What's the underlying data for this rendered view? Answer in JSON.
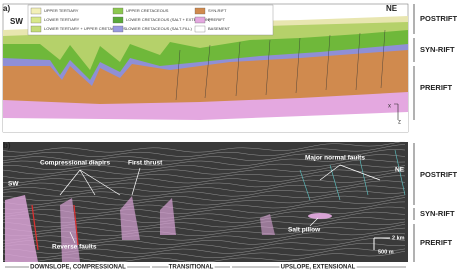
{
  "panel_a": {
    "label": "a)",
    "left": "SW",
    "right": "NE",
    "axis_x": "x",
    "axis_z": "z",
    "legend": [
      "UPPER TERTIARY",
      "LOWER TERTIARY",
      "LOWER TERTIARY + UPPER CRETACEOUS",
      "UPPER CRETACEOUS",
      "LOWER CRETACEOUS (SALT + EXTENSION)",
      "LOWER CRETACEOUS (SALT-FILL)",
      "SYN-RIFT",
      "PRERIFT",
      "BASEMENT"
    ]
  },
  "panel_b": {
    "label": "b)",
    "left": "SW",
    "right": "NE",
    "annotations": [
      "Compressional diapirs",
      "First thrust",
      "Major normal faults",
      "Reverse faults",
      "Salt pillow"
    ],
    "scale_h": "2 km",
    "scale_v": "500 m",
    "domains": [
      "DOWNSLOPE, COMPRESSIONAL",
      "TRANSITIONAL",
      "UPSLOPE, EXTENSIONAL"
    ]
  },
  "side_labels_a": [
    "POSTRIFT",
    "SYN-RIFT",
    "PRERIFT"
  ],
  "side_labels_b": [
    "POSTRIFT",
    "SYN-RIFT",
    "PRERIFT"
  ]
}
